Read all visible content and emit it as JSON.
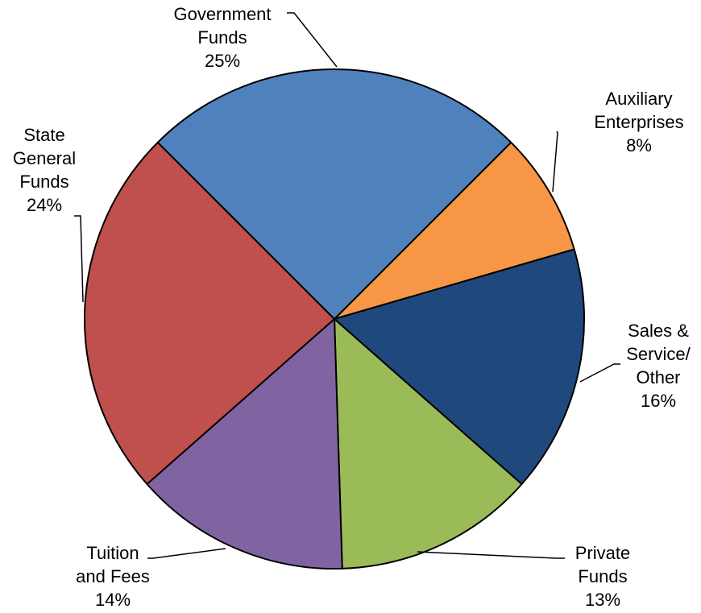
{
  "chart_data": {
    "type": "pie",
    "title": "",
    "slices": [
      {
        "label": [
          "Auxiliary",
          "Enterprises"
        ],
        "value": 8,
        "percent_label": "8%",
        "color": "#F79646"
      },
      {
        "label": [
          "Sales &",
          "Service/",
          "Other"
        ],
        "value": 16,
        "percent_label": "16%",
        "color": "#1F497D"
      },
      {
        "label": [
          "Private",
          "Funds"
        ],
        "value": 13,
        "percent_label": "13%",
        "color": "#9BBB59"
      },
      {
        "label": [
          "Tuition",
          "and Fees"
        ],
        "value": 14,
        "percent_label": "14%",
        "color": "#8064A2"
      },
      {
        "label": [
          "State",
          "General",
          "Funds"
        ],
        "value": 24,
        "percent_label": "24%",
        "color": "#C0504D"
      },
      {
        "label": [
          "Government",
          "Funds"
        ],
        "value": 25,
        "percent_label": "25%",
        "color": "#4F81BD"
      }
    ],
    "legend": "none",
    "data_labels": "outside with leader lines"
  }
}
